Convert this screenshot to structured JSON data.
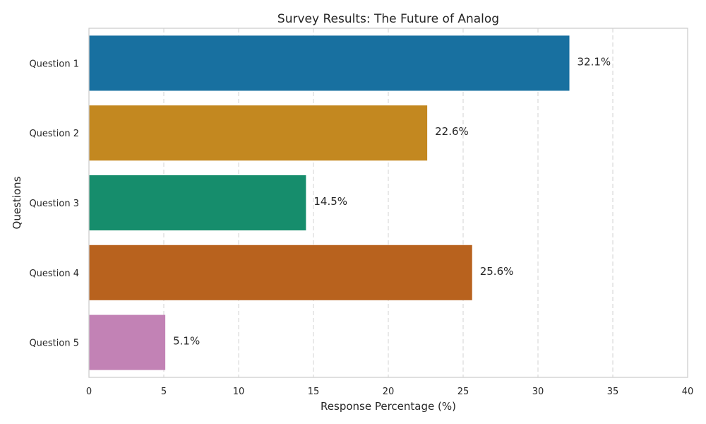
{
  "chart_data": {
    "type": "bar",
    "orientation": "horizontal",
    "title": "Survey Results: The Future of Analog",
    "xlabel": "Response Percentage (%)",
    "ylabel": "Questions",
    "categories": [
      "Question 1",
      "Question 2",
      "Question 3",
      "Question 4",
      "Question 5"
    ],
    "values": [
      32.1,
      22.6,
      14.5,
      25.6,
      5.1
    ],
    "value_labels": [
      "32.1%",
      "22.6%",
      "14.5%",
      "25.6%",
      "5.1%"
    ],
    "colors": [
      "#1870a0",
      "#c38820",
      "#168d6c",
      "#b8621e",
      "#c282b5"
    ],
    "xlim": [
      0,
      40
    ],
    "xticks": [
      0,
      5,
      10,
      15,
      20,
      25,
      30,
      35,
      40
    ],
    "xtick_labels": [
      "0",
      "5",
      "10",
      "15",
      "20",
      "25",
      "30",
      "35",
      "40"
    ],
    "grid": "x-dashed",
    "legend": "none"
  }
}
